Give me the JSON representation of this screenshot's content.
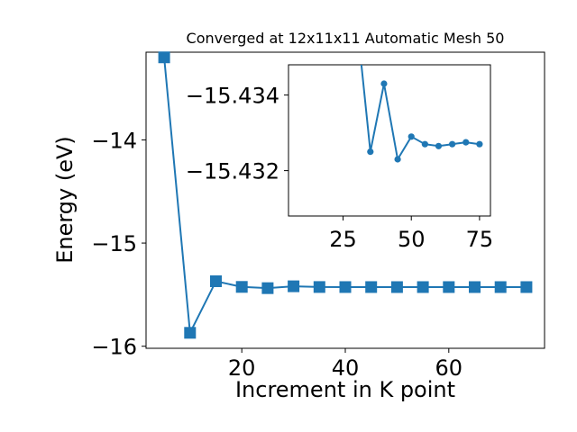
{
  "chart_data": [
    {
      "type": "line",
      "title": "Converged at 12x11x11 Automatic Mesh 50",
      "xlabel": "Increment in K point",
      "ylabel": "Energy (eV)",
      "xlim": [
        1.5,
        78.5
      ],
      "ylim": [
        -16.02,
        -13.15
      ],
      "xticks": [
        20,
        40,
        60
      ],
      "yticks": [
        -16,
        -15,
        -14
      ],
      "xtick_labels": [
        "20",
        "40",
        "60"
      ],
      "ytick_labels": [
        "−16",
        "−15",
        "−14"
      ],
      "marker": "square",
      "color": "#1f77b4",
      "grid": false,
      "x": [
        5,
        10,
        15,
        20,
        25,
        30,
        35,
        40,
        45,
        50,
        55,
        60,
        65,
        70,
        75
      ],
      "y": [
        -13.2,
        -15.87,
        -15.37,
        -15.425,
        -15.437,
        -15.419,
        -15.426,
        -15.4265,
        -15.4265,
        -15.4268,
        -15.4267,
        -15.4266,
        -15.4267,
        -15.4267,
        -15.4267
      ]
    },
    {
      "type": "line",
      "inset": true,
      "xlim": [
        5,
        79
      ],
      "ylim": [
        -15.4308,
        -15.4348
      ],
      "xticks": [
        25,
        50,
        75
      ],
      "yticks": [
        -15.434,
        -15.432
      ],
      "xtick_labels": [
        "25",
        "50",
        "75"
      ],
      "ytick_labels": [
        "−15.434",
        "−15.432"
      ],
      "marker": "circle",
      "color": "#1f77b4",
      "grid": false,
      "x": [
        35,
        40,
        45,
        50,
        55,
        60,
        65,
        70,
        75
      ],
      "y": [
        -15.4325,
        -15.4343,
        -15.4323,
        -15.4329,
        -15.4327,
        -15.43265,
        -15.4327,
        -15.43275,
        -15.4327
      ],
      "partial_segment": {
        "from_x": 30,
        "from_y": -15.436
      }
    }
  ]
}
